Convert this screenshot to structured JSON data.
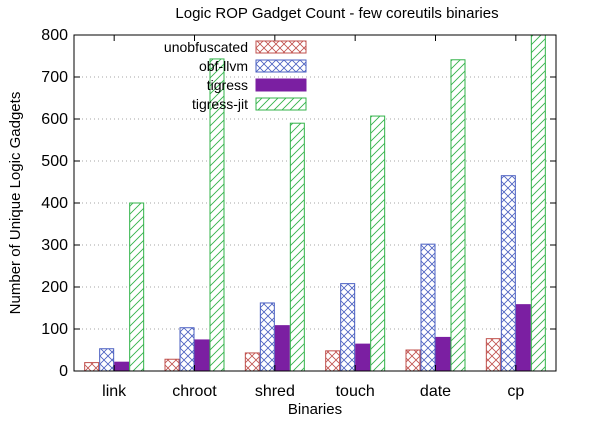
{
  "chart_data": {
    "type": "bar",
    "title": "Logic ROP Gadget Count - few coreutils binaries",
    "xlabel": "Binaries",
    "ylabel": "Number of Unique Logic Gadgets",
    "ylim": [
      0,
      800
    ],
    "yticks": [
      0,
      100,
      200,
      300,
      400,
      500,
      600,
      700,
      800
    ],
    "grid": "y-dotted",
    "legend_position": "top-left",
    "categories": [
      "link",
      "chroot",
      "shred",
      "touch",
      "date",
      "cp"
    ],
    "series": [
      {
        "name": "unobfuscated",
        "values": [
          20,
          28,
          43,
          48,
          50,
          77
        ],
        "color": "#c0504d",
        "pattern": "crosshatch"
      },
      {
        "name": "obf-llvm",
        "values": [
          53,
          103,
          162,
          208,
          302,
          465
        ],
        "color": "#4a5fc1",
        "pattern": "crosshatch"
      },
      {
        "name": "tigress",
        "values": [
          21,
          74,
          108,
          64,
          80,
          158
        ],
        "color": "#7b1fa2",
        "pattern": "solid"
      },
      {
        "name": "tigress-jit",
        "values": [
          400,
          743,
          590,
          607,
          741,
          800
        ],
        "color": "#33b34a",
        "pattern": "diagonal"
      }
    ]
  }
}
